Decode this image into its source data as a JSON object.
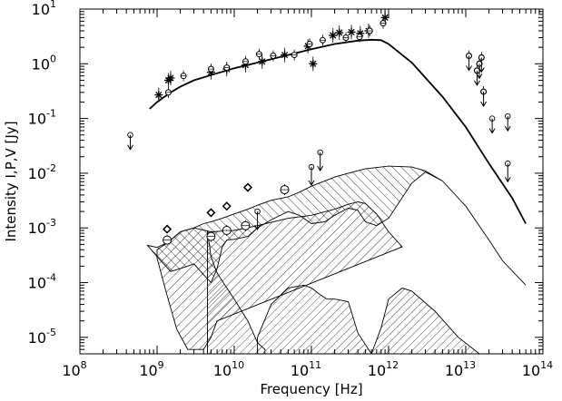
{
  "chart_data": {
    "type": "scatter",
    "title": "",
    "xlabel": "Frequency [Hz]",
    "ylabel": "Intensity I,P,V [Jy]",
    "xscale": "log",
    "yscale": "log",
    "xlim": [
      100000000.0,
      100000000000000.0
    ],
    "ylim": [
      5e-06,
      10
    ],
    "grid": false,
    "legend": "none",
    "x_ticks": [
      {
        "base": "10",
        "exp": "8",
        "value": 100000000.0
      },
      {
        "base": "10",
        "exp": "9",
        "value": 1000000000.0
      },
      {
        "base": "10",
        "exp": "10",
        "value": 10000000000.0
      },
      {
        "base": "10",
        "exp": "11",
        "value": 100000000000.0
      },
      {
        "base": "10",
        "exp": "12",
        "value": 1000000000000.0
      },
      {
        "base": "10",
        "exp": "13",
        "value": 10000000000000.0
      },
      {
        "base": "10",
        "exp": "14",
        "value": 100000000000000.0
      }
    ],
    "y_ticks": [
      {
        "base": "10",
        "exp": "1",
        "value": 10
      },
      {
        "base": "10",
        "exp": "0",
        "value": 1
      },
      {
        "base": "10",
        "exp": "-1",
        "value": 0.1
      },
      {
        "base": "10",
        "exp": "-2",
        "value": 0.01
      },
      {
        "base": "10",
        "exp": "-3",
        "value": 0.001
      },
      {
        "base": "10",
        "exp": "-4",
        "value": 0.0001
      },
      {
        "base": "10",
        "exp": "-5",
        "value": 1e-05
      }
    ],
    "total_intensity_model": {
      "x": [
        800000000.0,
        1000000000.0,
        1500000000.0,
        2000000000.0,
        3000000000.0,
        5000000000.0,
        10000000000.0,
        20000000000.0,
        50000000000.0,
        100000000000.0,
        200000000000.0,
        400000000000.0,
        600000000000.0,
        800000000000.0,
        1000000000000.0,
        2000000000000.0,
        5000000000000.0,
        10000000000000.0,
        20000000000000.0,
        40000000000000.0,
        60000000000000.0
      ],
      "y": [
        0.15,
        0.2,
        0.3,
        0.38,
        0.5,
        0.62,
        0.83,
        1.05,
        1.45,
        1.85,
        2.3,
        2.65,
        2.75,
        2.7,
        2.3,
        1.05,
        0.25,
        0.07,
        0.015,
        0.0035,
        0.0012
      ]
    },
    "polarized_model_upper": {
      "x": [
        750000000.0,
        1000000000.0,
        1400000000.0,
        2000000000.0,
        3000000000.0,
        4000000000.0,
        5000000000.0,
        7000000000.0,
        10000000000.0,
        15000000000.0,
        20000000000.0,
        30000000000.0,
        50000000000.0,
        70000000000.0,
        100000000000.0,
        200000000000.0,
        300000000000.0,
        500000000000.0,
        1000000000000.0,
        2000000000000.0,
        3000000000000.0,
        5000000000000.0,
        10000000000000.0,
        20000000000000.0,
        30000000000000.0,
        60000000000000.0
      ],
      "y": [
        0.00048,
        0.00044,
        0.00055,
        0.00085,
        0.001,
        0.0012,
        0.0013,
        0.0015,
        0.0018,
        0.0022,
        0.0026,
        0.0032,
        0.0037,
        0.0045,
        0.0058,
        0.0085,
        0.01,
        0.012,
        0.0135,
        0.013,
        0.011,
        0.0072,
        0.0025,
        0.0006,
        0.00025,
        9e-05
      ]
    },
    "polarized_model_lower": {
      "x": [
        750000000.0,
        1000000000.0,
        1500000000.0,
        2000000000.0,
        3000000000.0,
        4000000000.0,
        5000000000.0,
        6000000000.0,
        7000000000.0,
        8000000000.0,
        10000000000.0,
        15000000000.0,
        20000000000.0,
        30000000000.0,
        50000000000.0,
        70000000000.0,
        100000000000.0,
        150000000000.0,
        200000000000.0,
        300000000000.0,
        400000000000.0,
        500000000000.0,
        700000000000.0,
        1000000000000.0,
        2000000000000.0,
        3000000000000.0,
        5000000000000.0,
        10000000000000.0,
        20000000000000.0,
        30000000000000.0,
        60000000000000.0
      ],
      "y": [
        0.00048,
        0.0003,
        0.00016,
        0.00018,
        0.00022,
        0.00014,
        0.0001,
        0.00018,
        0.00045,
        0.0006,
        0.00062,
        0.0007,
        0.001,
        0.0014,
        0.002,
        0.0017,
        0.0012,
        0.0013,
        0.0017,
        0.0023,
        0.0021,
        0.0013,
        0.0011,
        0.0015,
        0.0066,
        0.0105,
        0.0072,
        0.0025,
        0.0006,
        0.00025,
        9e-05
      ]
    },
    "circular_model_upper": {
      "x": [
        1000000000.0,
        1400000000.0,
        2000000000.0,
        3000000000.0,
        5000000000.0,
        10000000000.0,
        20000000000.0,
        50000000000.0,
        100000000000.0,
        200000000000.0,
        300000000000.0,
        400000000000.0,
        500000000000.0,
        700000000000.0,
        1000000000000.0,
        1500000000000.0
      ],
      "y": [
        0.0004,
        0.00055,
        0.00085,
        0.001,
        0.00085,
        0.0009,
        0.0011,
        0.0015,
        0.0017,
        0.0022,
        0.0027,
        0.003,
        0.0028,
        0.0018,
        0.00085,
        0.00045
      ]
    },
    "circular_model_lower": {
      "x": [
        1000000000.0,
        1300000000.0,
        1800000000.0,
        2500000000.0,
        4000000000.0,
        5000000000.0,
        6000000000.0
      ],
      "y": [
        0.00028,
        7e-05,
        1.4e-05,
        6e-06,
        6e-06,
        1e-05,
        2e-05
      ]
    },
    "hatched_region_lower_a": {
      "x": [
        4500000000.0,
        5000000000.0,
        6000000000.0,
        8000000000.0,
        10000000000.0,
        15000000000.0,
        20000000000.0,
        25000000000.0
      ],
      "y": [
        0.0009,
        0.0003,
        0.00015,
        8e-05,
        5e-05,
        2e-05,
        8e-06,
        6e-06
      ]
    },
    "hatched_region_lower_b": {
      "x": [
        20000000000.0,
        30000000000.0,
        50000000000.0,
        80000000000.0,
        100000000000.0,
        130000000000.0,
        160000000000.0,
        200000000000.0,
        300000000000.0,
        400000000000.0,
        600000000000.0,
        800000000000.0,
        1000000000000.0,
        1500000000000.0,
        2000000000000.0,
        4000000000000.0,
        8000000000000.0,
        15000000000000.0
      ],
      "y": [
        1e-05,
        4e-05,
        8e-05,
        9e-05,
        8e-05,
        6e-05,
        5e-05,
        5e-05,
        4.5e-05,
        1.2e-05,
        5e-06,
        1.5e-05,
        5e-05,
        8e-05,
        7e-05,
        3e-05,
        1e-05,
        5e-06
      ]
    },
    "total_intensity_stars": {
      "x": [
        1050000000.0,
        1400000000.0,
        1500000000.0,
        5000000000.0,
        8000000000.0,
        14000000000.0,
        23000000000.0,
        45000000000.0,
        90000000000.0,
        105000000000.0,
        190000000000.0,
        230000000000.0,
        330000000000.0,
        430000000000.0,
        550000000000.0,
        900000000000.0
      ],
      "y": [
        0.27,
        0.5,
        0.55,
        0.7,
        0.8,
        0.95,
        1.1,
        1.45,
        2.1,
        1.0,
        3.3,
        3.7,
        3.8,
        3.6,
        4.0,
        7.0
      ]
    },
    "total_intensity_circles": {
      "x": [
        1400000000.0,
        2200000000.0,
        5000000000.0,
        8000000000.0,
        14000000000.0,
        21000000000.0,
        32000000000.0,
        60000000000.0,
        95000000000.0,
        140000000000.0,
        280000000000.0,
        420000000000.0,
        570000000000.0,
        850000000000.0,
        11000000000000.0,
        14000000000000.0,
        15000000000000.0,
        16000000000000.0,
        17000000000000.0
      ],
      "y": [
        0.3,
        0.6,
        0.8,
        0.85,
        1.1,
        1.5,
        1.4,
        1.45,
        2.3,
        2.7,
        3.0,
        3.1,
        4.0,
        5.5,
        1.4,
        0.75,
        1.0,
        1.3,
        0.31
      ]
    },
    "upper_limits_I": {
      "x": [
        450000000.0,
        11000000000000.0,
        14000000000000.0,
        15000000000000.0,
        16000000000000.0,
        17000000000000.0,
        22000000000000.0,
        35000000000000.0
      ],
      "y": [
        0.05,
        1.4,
        0.75,
        1.0,
        1.3,
        0.31,
        0.1,
        0.11
      ]
    },
    "polarized_circles": {
      "x": [
        1350000000.0,
        5000000000.0,
        8000000000.0,
        14000000000.0,
        45000000000.0
      ],
      "y": [
        0.0006,
        0.0007,
        0.0009,
        0.0011,
        0.005
      ]
    },
    "polarized_upper_limits": {
      "x": [
        100000000000.0,
        130000000000.0,
        20000000000.0,
        35000000000000.0
      ],
      "y": [
        0.013,
        0.024,
        0.002,
        0.015
      ]
    },
    "circular_diamonds": {
      "x": [
        1350000000.0,
        5000000000.0,
        8000000000.0,
        15000000000.0
      ],
      "y": [
        0.00095,
        0.0019,
        0.0025,
        0.0055
      ]
    }
  }
}
